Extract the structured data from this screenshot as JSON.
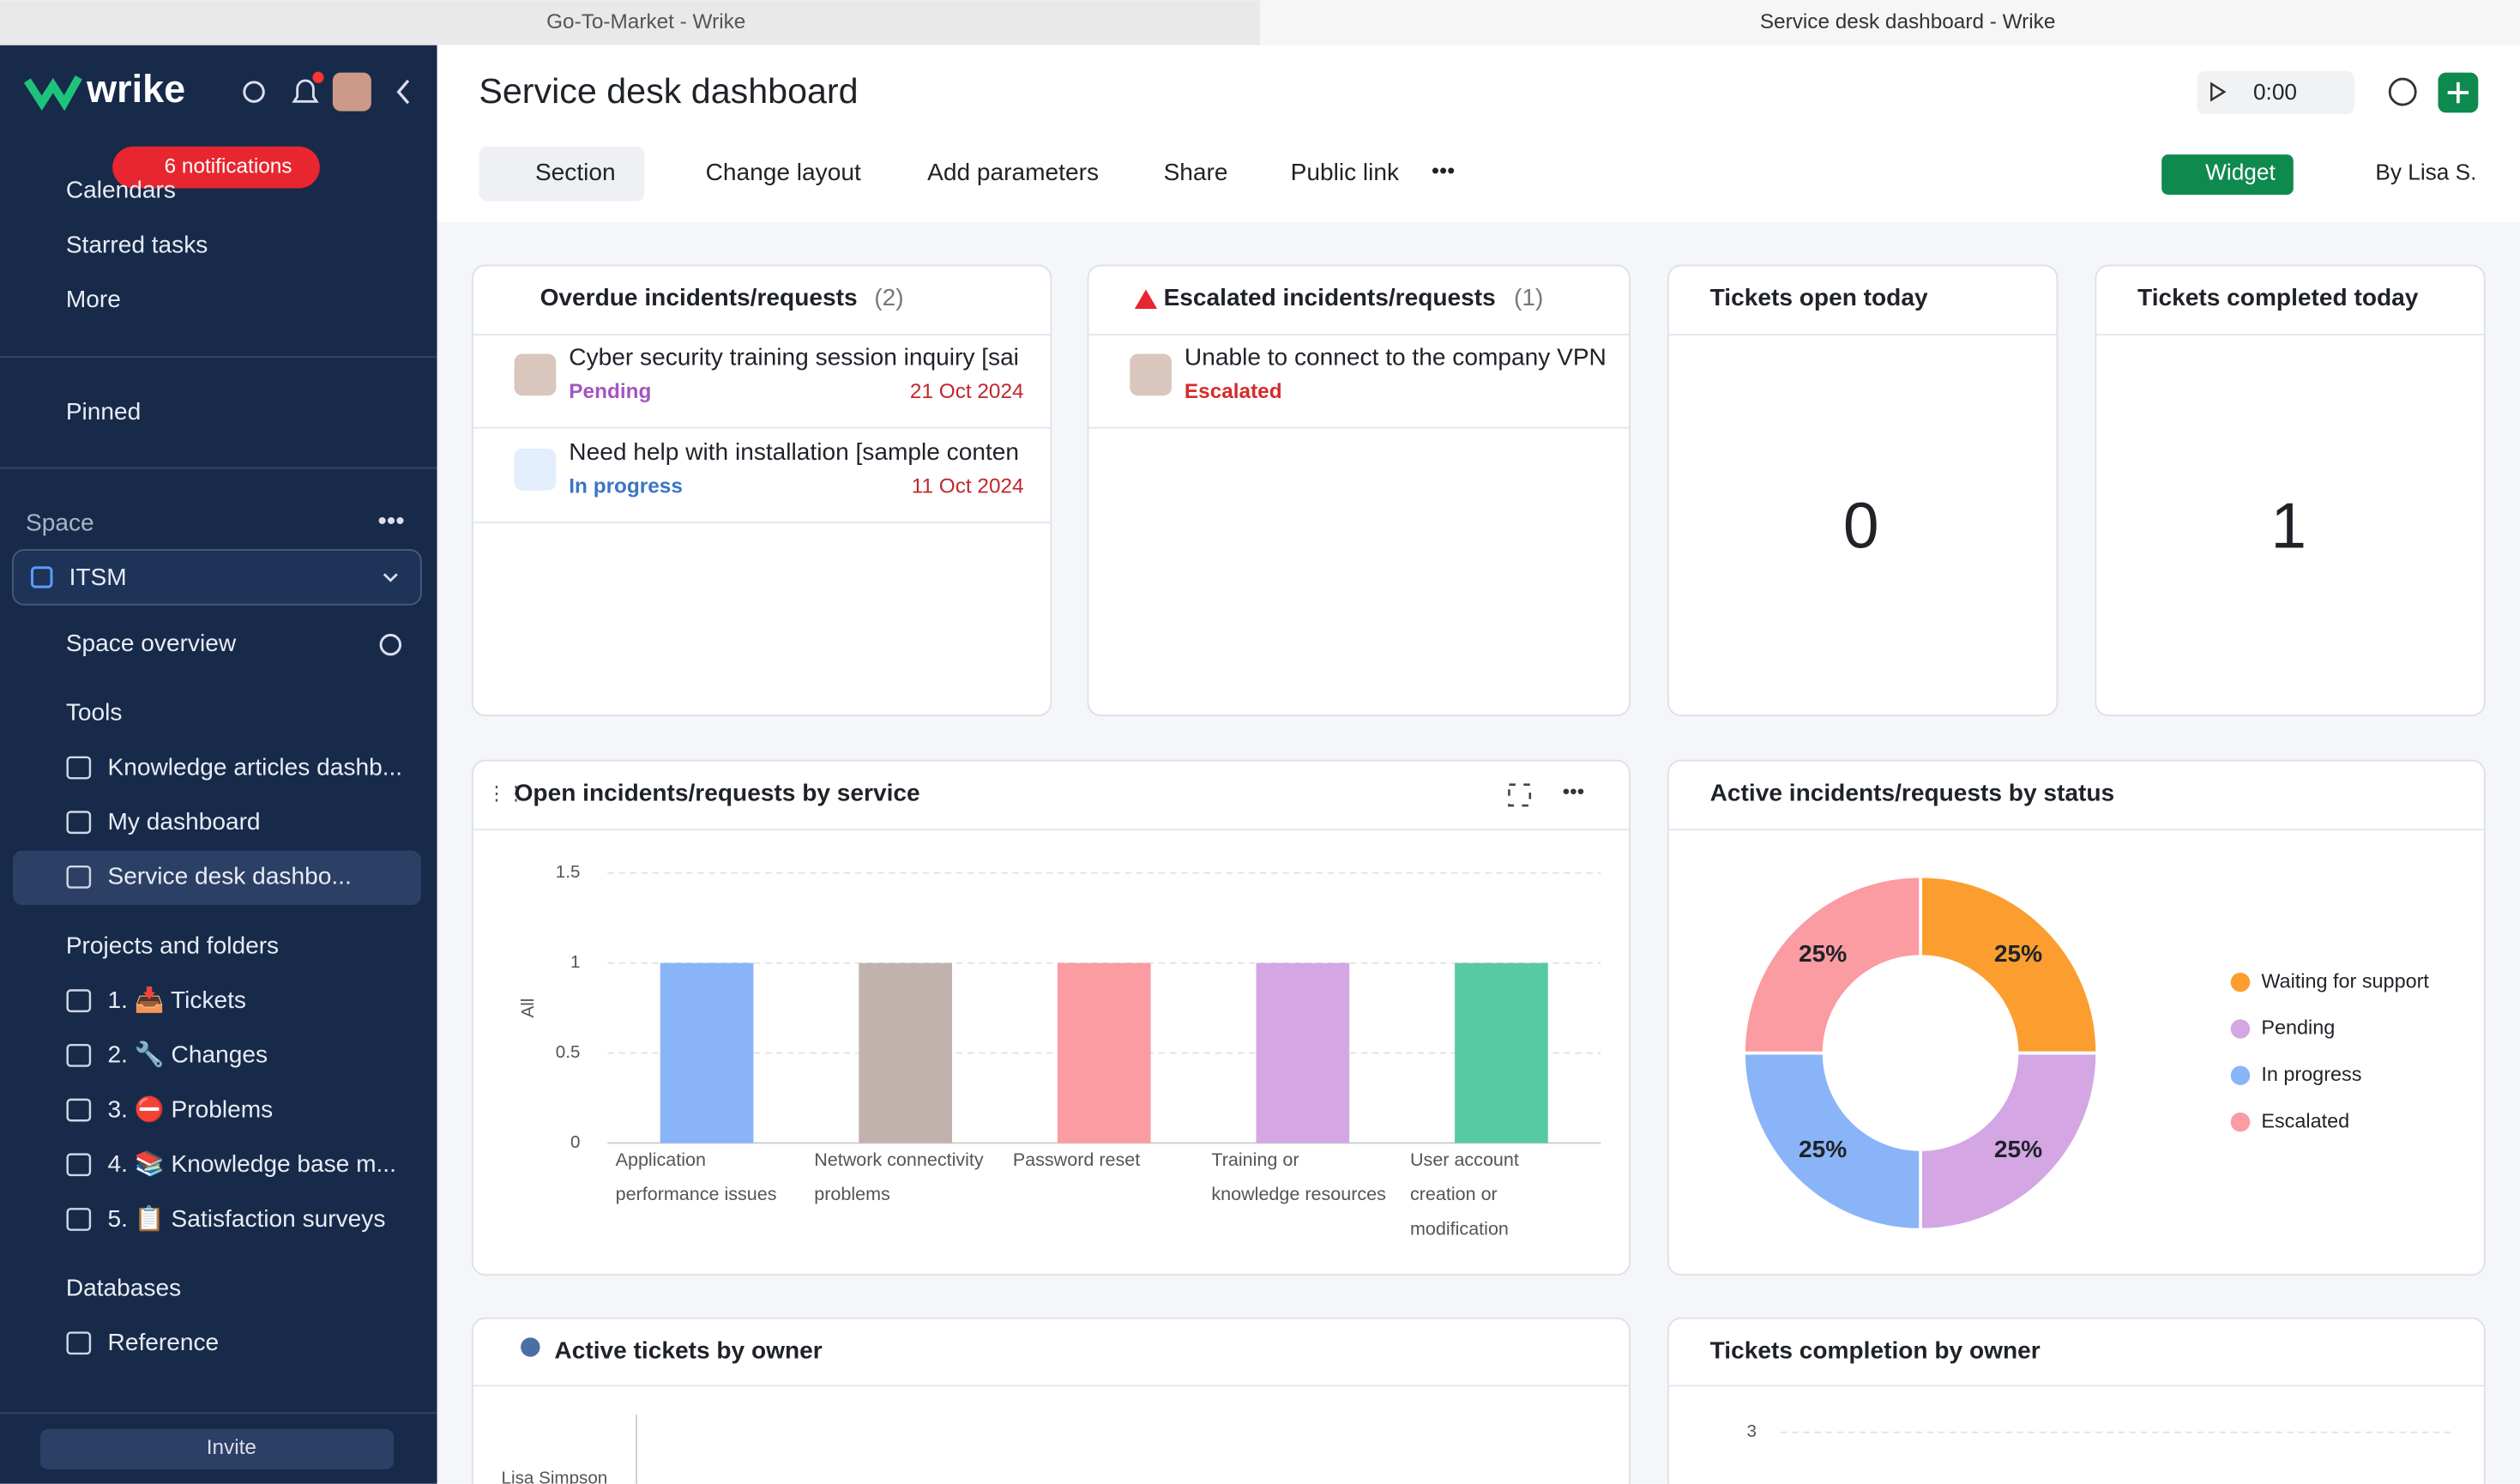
{
  "tabs": [
    "Go-To-Market - Wrike",
    "Service desk dashboard - Wrike"
  ],
  "sidebar": {
    "logo": "wrike",
    "notification_badge": "6 notifications",
    "items_top": [
      "Calendars",
      "Starred tasks",
      "More"
    ],
    "pinned": "Pinned",
    "space_label": "Space",
    "space": "ITSM",
    "space_overview": "Space overview",
    "tools": {
      "label": "Tools",
      "items": [
        "Knowledge articles dashb...",
        "My dashboard",
        "Service desk dashbo..."
      ]
    },
    "projects": {
      "label": "Projects and folders",
      "items": [
        "1. 📥 Tickets",
        "2. 🔧 Changes",
        "3. ⛔ Problems",
        "4. 📚 Knowledge base m...",
        "5. 📋 Satisfaction surveys"
      ]
    },
    "databases": {
      "label": "Databases",
      "items": [
        "Reference"
      ]
    },
    "invite": "Invite"
  },
  "header": {
    "title": "Service desk dashboard",
    "timer": "0:00",
    "toolbar": [
      "Section",
      "Change layout",
      "Add parameters",
      "Share",
      "Public link"
    ],
    "widget_button": "Widget",
    "owner": "By Lisa S."
  },
  "widgets": {
    "overdue": {
      "title": "Overdue incidents/requests",
      "count": "(2)",
      "tasks": [
        {
          "name": "Cyber security training session inquiry [sai",
          "status": "Pending",
          "date": "21 Oct 2024"
        },
        {
          "name": "Need help with installation [sample conten",
          "status": "In progress",
          "date": "11 Oct 2024"
        }
      ]
    },
    "escalated": {
      "title": "Escalated incidents/requests",
      "count": "(1)",
      "tasks": [
        {
          "name": "Unable to connect to the company VPN",
          "status": "Escalated"
        }
      ]
    },
    "open_today": {
      "title": "Tickets open today",
      "value": 0
    },
    "completed_today": {
      "title": "Tickets completed today",
      "value": 1
    },
    "by_service": {
      "type": "bar",
      "title": "Open incidents/requests by service",
      "ylabel": "All",
      "categories": [
        [
          "Application",
          "performance issues"
        ],
        [
          "Network connectivity",
          "problems"
        ],
        [
          "Password reset"
        ],
        [
          "Training or",
          "knowledge resources"
        ],
        [
          "User account",
          "creation or",
          "modification"
        ]
      ],
      "values": [
        1,
        1,
        1,
        1,
        1
      ],
      "colors": [
        "#8ab4f8",
        "#c2b2ad",
        "#fb9ba2",
        "#d4a6e4",
        "#57c9a3"
      ],
      "ylim": [
        0,
        1.5
      ],
      "yticks": [
        0,
        0.5,
        1,
        1.5
      ],
      "grid": true
    },
    "by_status": {
      "type": "pie",
      "title": "Active incidents/requests by status",
      "categories": [
        "Waiting for support",
        "Pending",
        "In progress",
        "Escalated"
      ],
      "values": [
        25,
        25,
        25,
        25
      ],
      "value_labels": [
        "25%",
        "25%",
        "25%",
        "25%"
      ],
      "colors": [
        "#fb9e2f",
        "#d4a6e4",
        "#8ab4f8",
        "#fb9ba2"
      ]
    },
    "by_owner": {
      "title": "Active tickets by owner",
      "categories": [
        "Lisa Simpson"
      ]
    },
    "completion": {
      "title": "Tickets completion by owner",
      "yticks": [
        3
      ]
    }
  }
}
